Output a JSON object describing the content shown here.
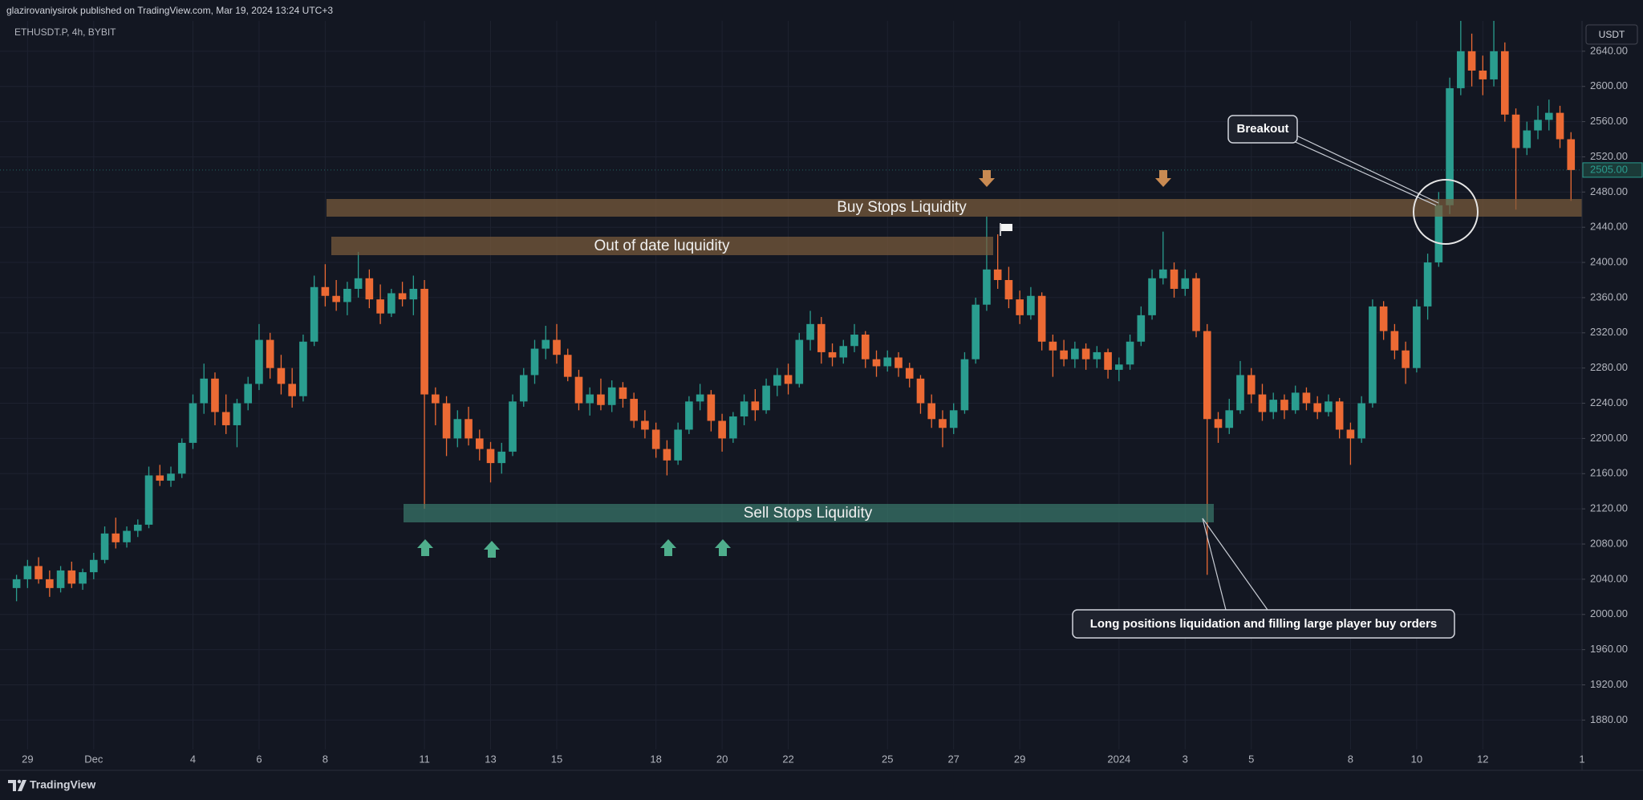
{
  "header": {
    "publisher": "glazirovaniysirok published on TradingView.com, Mar 19, 2024 13:24 UTC+3",
    "symbol": "ETHUSDT.P, 4h, BYBIT",
    "currency": "USDT",
    "brand": "TradingView"
  },
  "chart_data": {
    "type": "candlestick",
    "colors": {
      "up": "#2a9d8f",
      "down": "#ec6a34"
    },
    "grid": true,
    "xlim": [
      -1.5,
      142
    ],
    "ylim": [
      1846.6,
      2674.5
    ],
    "xticks": [
      {
        "value": 1,
        "label": "29"
      },
      {
        "value": 7,
        "label": "Dec"
      },
      {
        "value": 16,
        "label": "4"
      },
      {
        "value": 22,
        "label": "6"
      },
      {
        "value": 28,
        "label": "8"
      },
      {
        "value": 37,
        "label": "11"
      },
      {
        "value": 43,
        "label": "13"
      },
      {
        "value": 49,
        "label": "15"
      },
      {
        "value": 58,
        "label": "18"
      },
      {
        "value": 64,
        "label": "20"
      },
      {
        "value": 70,
        "label": "22"
      },
      {
        "value": 79,
        "label": "25"
      },
      {
        "value": 85,
        "label": "27"
      },
      {
        "value": 91,
        "label": "29"
      },
      {
        "value": 100,
        "label": "2024"
      },
      {
        "value": 106,
        "label": "3"
      },
      {
        "value": 112,
        "label": "5"
      },
      {
        "value": 121,
        "label": "8"
      },
      {
        "value": 127,
        "label": "10"
      },
      {
        "value": 133,
        "label": "12"
      },
      {
        "value": 142,
        "label": "1"
      }
    ],
    "yticks": [
      {
        "value": 1880,
        "label": "1880.00"
      },
      {
        "value": 1920,
        "label": "1920.00"
      },
      {
        "value": 1960,
        "label": "1960.00"
      },
      {
        "value": 2000,
        "label": "2000.00"
      },
      {
        "value": 2040,
        "label": "2040.00"
      },
      {
        "value": 2080,
        "label": "2080.00"
      },
      {
        "value": 2120,
        "label": "2120.00"
      },
      {
        "value": 2160,
        "label": "2160.00"
      },
      {
        "value": 2200,
        "label": "2200.00"
      },
      {
        "value": 2240,
        "label": "2240.00"
      },
      {
        "value": 2280,
        "label": "2280.00"
      },
      {
        "value": 2320,
        "label": "2320.00"
      },
      {
        "value": 2360,
        "label": "2360.00"
      },
      {
        "value": 2400,
        "label": "2400.00"
      },
      {
        "value": 2440,
        "label": "2440.00"
      },
      {
        "value": 2480,
        "label": "2480.00"
      },
      {
        "value": 2520,
        "label": "2520.00"
      },
      {
        "value": 2560,
        "label": "2560.00"
      },
      {
        "value": 2600,
        "label": "2600.00"
      },
      {
        "value": 2640,
        "label": "2640.00"
      }
    ],
    "last_price": {
      "value": 2505,
      "label": "2505.00"
    },
    "annotations": {
      "buy_stops": "Buy Stops Liquidity",
      "out_of_date": "Out of date luquidity",
      "sell_stops": "Sell Stops Liquidity",
      "breakout": "Breakout",
      "long_liquidation": "Long positions liquidation and filling large player buy orders"
    },
    "ohlc": [
      [
        2030,
        2045,
        2015,
        2040
      ],
      [
        2040,
        2062,
        2030,
        2055
      ],
      [
        2055,
        2065,
        2035,
        2040
      ],
      [
        2040,
        2050,
        2020,
        2030
      ],
      [
        2030,
        2055,
        2025,
        2050
      ],
      [
        2050,
        2060,
        2030,
        2035
      ],
      [
        2035,
        2052,
        2028,
        2048
      ],
      [
        2048,
        2070,
        2040,
        2062
      ],
      [
        2062,
        2100,
        2058,
        2092
      ],
      [
        2092,
        2110,
        2075,
        2082
      ],
      [
        2082,
        2100,
        2076,
        2095
      ],
      [
        2095,
        2108,
        2088,
        2102
      ],
      [
        2102,
        2168,
        2098,
        2158
      ],
      [
        2158,
        2170,
        2146,
        2152
      ],
      [
        2152,
        2168,
        2145,
        2160
      ],
      [
        2160,
        2200,
        2155,
        2195
      ],
      [
        2195,
        2250,
        2188,
        2240
      ],
      [
        2240,
        2285,
        2228,
        2268
      ],
      [
        2268,
        2275,
        2215,
        2230
      ],
      [
        2230,
        2250,
        2205,
        2215
      ],
      [
        2215,
        2245,
        2190,
        2240
      ],
      [
        2240,
        2270,
        2232,
        2262
      ],
      [
        2262,
        2330,
        2255,
        2312
      ],
      [
        2312,
        2320,
        2268,
        2280
      ],
      [
        2280,
        2295,
        2250,
        2262
      ],
      [
        2262,
        2280,
        2235,
        2248
      ],
      [
        2248,
        2318,
        2242,
        2310
      ],
      [
        2310,
        2385,
        2305,
        2372
      ],
      [
        2372,
        2398,
        2350,
        2362
      ],
      [
        2362,
        2380,
        2345,
        2355
      ],
      [
        2355,
        2378,
        2340,
        2370
      ],
      [
        2370,
        2412,
        2360,
        2382
      ],
      [
        2382,
        2392,
        2348,
        2358
      ],
      [
        2358,
        2375,
        2330,
        2342
      ],
      [
        2342,
        2370,
        2338,
        2365
      ],
      [
        2365,
        2378,
        2350,
        2358
      ],
      [
        2358,
        2385,
        2340,
        2370
      ],
      [
        2370,
        2380,
        2120,
        2250
      ],
      [
        2250,
        2258,
        2215,
        2240
      ],
      [
        2240,
        2248,
        2180,
        2200
      ],
      [
        2200,
        2232,
        2190,
        2222
      ],
      [
        2222,
        2236,
        2192,
        2200
      ],
      [
        2200,
        2210,
        2175,
        2188
      ],
      [
        2188,
        2196,
        2150,
        2172
      ],
      [
        2172,
        2195,
        2160,
        2185
      ],
      [
        2185,
        2250,
        2180,
        2242
      ],
      [
        2242,
        2280,
        2236,
        2272
      ],
      [
        2272,
        2312,
        2262,
        2302
      ],
      [
        2302,
        2328,
        2290,
        2312
      ],
      [
        2312,
        2330,
        2285,
        2295
      ],
      [
        2295,
        2302,
        2265,
        2270
      ],
      [
        2270,
        2278,
        2232,
        2240
      ],
      [
        2240,
        2258,
        2226,
        2250
      ],
      [
        2250,
        2268,
        2232,
        2238
      ],
      [
        2238,
        2266,
        2230,
        2258
      ],
      [
        2258,
        2264,
        2235,
        2245
      ],
      [
        2245,
        2252,
        2212,
        2220
      ],
      [
        2220,
        2232,
        2200,
        2210
      ],
      [
        2210,
        2218,
        2178,
        2188
      ],
      [
        2188,
        2198,
        2158,
        2175
      ],
      [
        2175,
        2218,
        2170,
        2210
      ],
      [
        2210,
        2248,
        2205,
        2242
      ],
      [
        2242,
        2262,
        2232,
        2250
      ],
      [
        2250,
        2255,
        2208,
        2220
      ],
      [
        2220,
        2228,
        2185,
        2200
      ],
      [
        2200,
        2230,
        2195,
        2225
      ],
      [
        2225,
        2250,
        2215,
        2242
      ],
      [
        2242,
        2256,
        2220,
        2232
      ],
      [
        2232,
        2268,
        2228,
        2260
      ],
      [
        2260,
        2280,
        2248,
        2272
      ],
      [
        2272,
        2285,
        2250,
        2262
      ],
      [
        2262,
        2320,
        2258,
        2312
      ],
      [
        2312,
        2345,
        2300,
        2330
      ],
      [
        2330,
        2338,
        2285,
        2298
      ],
      [
        2298,
        2308,
        2282,
        2292
      ],
      [
        2292,
        2312,
        2285,
        2305
      ],
      [
        2305,
        2330,
        2298,
        2318
      ],
      [
        2318,
        2322,
        2280,
        2290
      ],
      [
        2290,
        2300,
        2270,
        2282
      ],
      [
        2282,
        2300,
        2276,
        2292
      ],
      [
        2292,
        2298,
        2270,
        2280
      ],
      [
        2280,
        2286,
        2258,
        2268
      ],
      [
        2268,
        2272,
        2228,
        2240
      ],
      [
        2240,
        2250,
        2212,
        2222
      ],
      [
        2222,
        2232,
        2190,
        2212
      ],
      [
        2212,
        2240,
        2205,
        2232
      ],
      [
        2232,
        2298,
        2228,
        2290
      ],
      [
        2290,
        2360,
        2285,
        2352
      ],
      [
        2352,
        2452,
        2345,
        2392
      ],
      [
        2392,
        2432,
        2370,
        2380
      ],
      [
        2380,
        2395,
        2348,
        2358
      ],
      [
        2358,
        2368,
        2330,
        2340
      ],
      [
        2340,
        2372,
        2335,
        2362
      ],
      [
        2362,
        2366,
        2300,
        2310
      ],
      [
        2310,
        2318,
        2270,
        2300
      ],
      [
        2300,
        2312,
        2282,
        2290
      ],
      [
        2290,
        2310,
        2280,
        2302
      ],
      [
        2302,
        2308,
        2278,
        2290
      ],
      [
        2290,
        2305,
        2280,
        2298
      ],
      [
        2298,
        2302,
        2268,
        2278
      ],
      [
        2278,
        2292,
        2265,
        2284
      ],
      [
        2284,
        2318,
        2278,
        2310
      ],
      [
        2310,
        2350,
        2305,
        2340
      ],
      [
        2340,
        2392,
        2335,
        2382
      ],
      [
        2382,
        2435,
        2375,
        2392
      ],
      [
        2392,
        2400,
        2360,
        2370
      ],
      [
        2370,
        2392,
        2362,
        2382
      ],
      [
        2382,
        2388,
        2315,
        2322
      ],
      [
        2322,
        2330,
        2045,
        2222
      ],
      [
        2222,
        2230,
        2195,
        2212
      ],
      [
        2212,
        2245,
        2205,
        2232
      ],
      [
        2232,
        2288,
        2228,
        2272
      ],
      [
        2272,
        2280,
        2240,
        2250
      ],
      [
        2250,
        2262,
        2220,
        2230
      ],
      [
        2230,
        2252,
        2222,
        2244
      ],
      [
        2244,
        2250,
        2222,
        2232
      ],
      [
        2232,
        2260,
        2228,
        2252
      ],
      [
        2252,
        2258,
        2232,
        2240
      ],
      [
        2240,
        2248,
        2222,
        2230
      ],
      [
        2230,
        2250,
        2225,
        2242
      ],
      [
        2242,
        2246,
        2200,
        2210
      ],
      [
        2210,
        2218,
        2170,
        2200
      ],
      [
        2200,
        2248,
        2195,
        2240
      ],
      [
        2240,
        2358,
        2235,
        2350
      ],
      [
        2350,
        2356,
        2312,
        2322
      ],
      [
        2322,
        2330,
        2290,
        2300
      ],
      [
        2300,
        2310,
        2262,
        2280
      ],
      [
        2280,
        2358,
        2275,
        2350
      ],
      [
        2350,
        2410,
        2335,
        2400
      ],
      [
        2400,
        2480,
        2395,
        2465
      ],
      [
        2465,
        2610,
        2455,
        2598
      ],
      [
        2598,
        2680,
        2590,
        2640
      ],
      [
        2640,
        2660,
        2600,
        2618
      ],
      [
        2618,
        2635,
        2590,
        2608
      ],
      [
        2608,
        2682,
        2600,
        2640
      ],
      [
        2640,
        2650,
        2560,
        2568
      ],
      [
        2568,
        2575,
        2460,
        2530
      ],
      [
        2530,
        2560,
        2522,
        2550
      ],
      [
        2550,
        2578,
        2540,
        2562
      ],
      [
        2562,
        2585,
        2550,
        2570
      ],
      [
        2570,
        2578,
        2530,
        2540
      ],
      [
        2540,
        2548,
        2470,
        2505
      ]
    ]
  }
}
